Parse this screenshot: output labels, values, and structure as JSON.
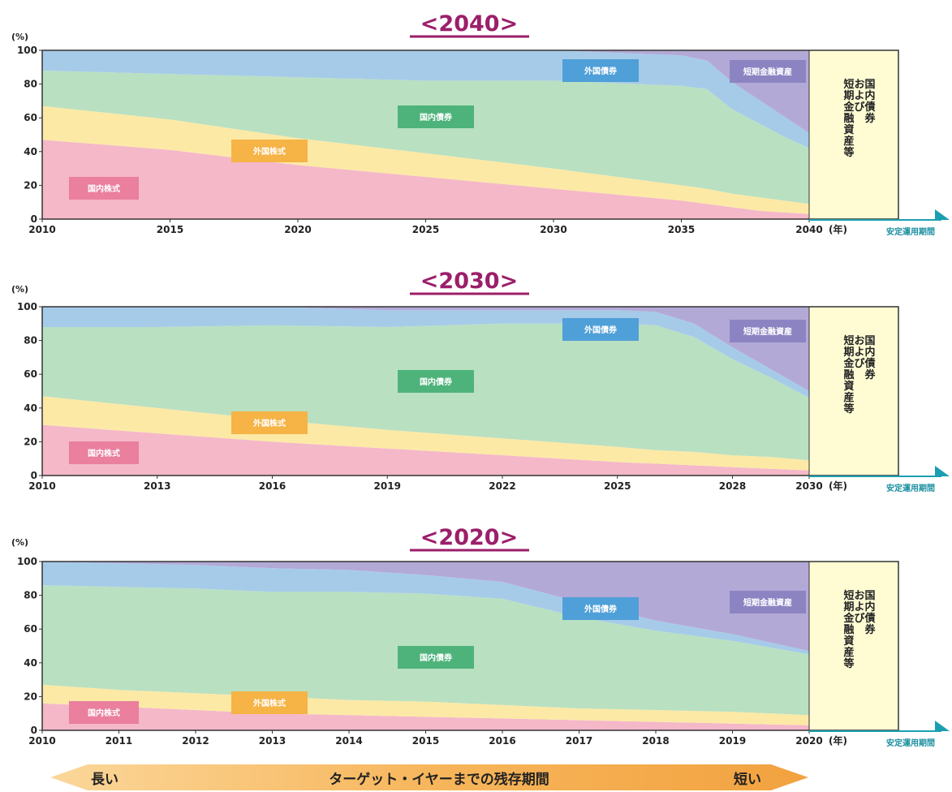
{
  "chart_data": [
    {
      "type": "area",
      "title": "<2040>",
      "ylabel": "(%)",
      "xunit": "(年)",
      "stable_label": "安定運用期間",
      "stable_box_text": [
        "国内債券",
        "および",
        "短期金融資産等"
      ],
      "ylim": [
        0,
        100
      ],
      "y_ticks": [
        "0",
        "20",
        "40",
        "60",
        "80",
        "100"
      ],
      "x_ticks": [
        "2010",
        "2015",
        "2020",
        "2025",
        "2030",
        "2035",
        "2040"
      ],
      "x": [
        2010,
        2015,
        2020,
        2025,
        2030,
        2035,
        2036,
        2037,
        2038,
        2039,
        2040
      ],
      "series": [
        {
          "name": "国内株式",
          "color": "#f4b8c9",
          "values": [
            47,
            41,
            32,
            25,
            18,
            11,
            9,
            7,
            5,
            4,
            3
          ]
        },
        {
          "name": "外国株式",
          "color": "#fce9a6",
          "values": [
            20,
            18,
            16,
            14,
            12,
            9,
            9,
            8,
            8,
            7,
            6
          ]
        },
        {
          "name": "国内債券",
          "color": "#b9e0c1",
          "values": [
            21,
            27,
            36,
            43,
            52,
            59,
            59,
            50,
            44,
            38,
            33
          ]
        },
        {
          "name": "外国債券",
          "color": "#a6cbe9",
          "values": [
            12,
            14,
            16,
            18,
            18,
            18,
            17,
            16,
            14,
            12,
            9
          ]
        },
        {
          "name": "短期金融資産",
          "color": "#b3a9d6",
          "values": [
            0,
            0,
            0,
            0,
            0,
            3,
            6,
            19,
            29,
            39,
            49
          ]
        }
      ]
    },
    {
      "type": "area",
      "title": "<2030>",
      "ylabel": "(%)",
      "xunit": "(年)",
      "stable_label": "安定運用期間",
      "stable_box_text": [
        "国内債券",
        "および",
        "短期金融資産等"
      ],
      "ylim": [
        0,
        100
      ],
      "y_ticks": [
        "0",
        "20",
        "40",
        "60",
        "80",
        "100"
      ],
      "x_ticks": [
        "2010",
        "2013",
        "2016",
        "2019",
        "2022",
        "2025",
        "2028",
        "2030"
      ],
      "x": [
        2010,
        2013,
        2016,
        2019,
        2022,
        2025,
        2026,
        2027,
        2028,
        2029,
        2030
      ],
      "series": [
        {
          "name": "国内株式",
          "color": "#f4b8c9",
          "values": [
            30,
            25,
            20,
            16,
            12,
            8,
            7,
            6,
            5,
            4,
            3
          ]
        },
        {
          "name": "外国株式",
          "color": "#fce9a6",
          "values": [
            17,
            15,
            13,
            11,
            10,
            9,
            8,
            8,
            7,
            7,
            6
          ]
        },
        {
          "name": "国内債券",
          "color": "#b9e0c1",
          "values": [
            41,
            48,
            56,
            61,
            68,
            73,
            74,
            68,
            57,
            47,
            37
          ]
        },
        {
          "name": "外国債券",
          "color": "#a6cbe9",
          "values": [
            12,
            12,
            11,
            10,
            8,
            8,
            8,
            8,
            7,
            5,
            4
          ]
        },
        {
          "name": "短期金融資産",
          "color": "#b3a9d6",
          "values": [
            0,
            0,
            0,
            2,
            2,
            2,
            3,
            10,
            24,
            37,
            50
          ]
        }
      ]
    },
    {
      "type": "area",
      "title": "<2020>",
      "ylabel": "(%)",
      "xunit": "(年)",
      "stable_label": "安定運用期間",
      "stable_box_text": [
        "国内債券",
        "および",
        "短期金融資産等"
      ],
      "ylim": [
        0,
        100
      ],
      "y_ticks": [
        "0",
        "20",
        "40",
        "60",
        "80",
        "100"
      ],
      "x_ticks": [
        "2010",
        "2011",
        "2012",
        "2013",
        "2014",
        "2015",
        "2016",
        "2017",
        "2018",
        "2019",
        "2020"
      ],
      "x": [
        2010,
        2011,
        2012,
        2013,
        2014,
        2015,
        2016,
        2017,
        2018,
        2019,
        2020
      ],
      "series": [
        {
          "name": "国内株式",
          "color": "#f4b8c9",
          "values": [
            16,
            14,
            12,
            10,
            9,
            8,
            7,
            6,
            5,
            4,
            3
          ]
        },
        {
          "name": "外国株式",
          "color": "#fce9a6",
          "values": [
            11,
            10,
            10,
            10,
            9,
            9,
            8,
            7,
            7,
            7,
            6
          ]
        },
        {
          "name": "国内債券",
          "color": "#b9e0c1",
          "values": [
            59,
            61,
            62,
            62,
            64,
            64,
            63,
            54,
            47,
            42,
            36
          ]
        },
        {
          "name": "外国債券",
          "color": "#a6cbe9",
          "values": [
            14,
            14,
            14,
            14,
            13,
            11,
            10,
            9,
            6,
            4,
            2
          ]
        },
        {
          "name": "短期金融資産",
          "color": "#b3a9d6",
          "values": [
            0,
            1,
            2,
            4,
            5,
            8,
            12,
            24,
            35,
            43,
            53
          ]
        }
      ]
    }
  ],
  "arrow": {
    "left": "長い",
    "middle": "ターゲット・イヤーまでの残存期間",
    "right": "短い"
  }
}
